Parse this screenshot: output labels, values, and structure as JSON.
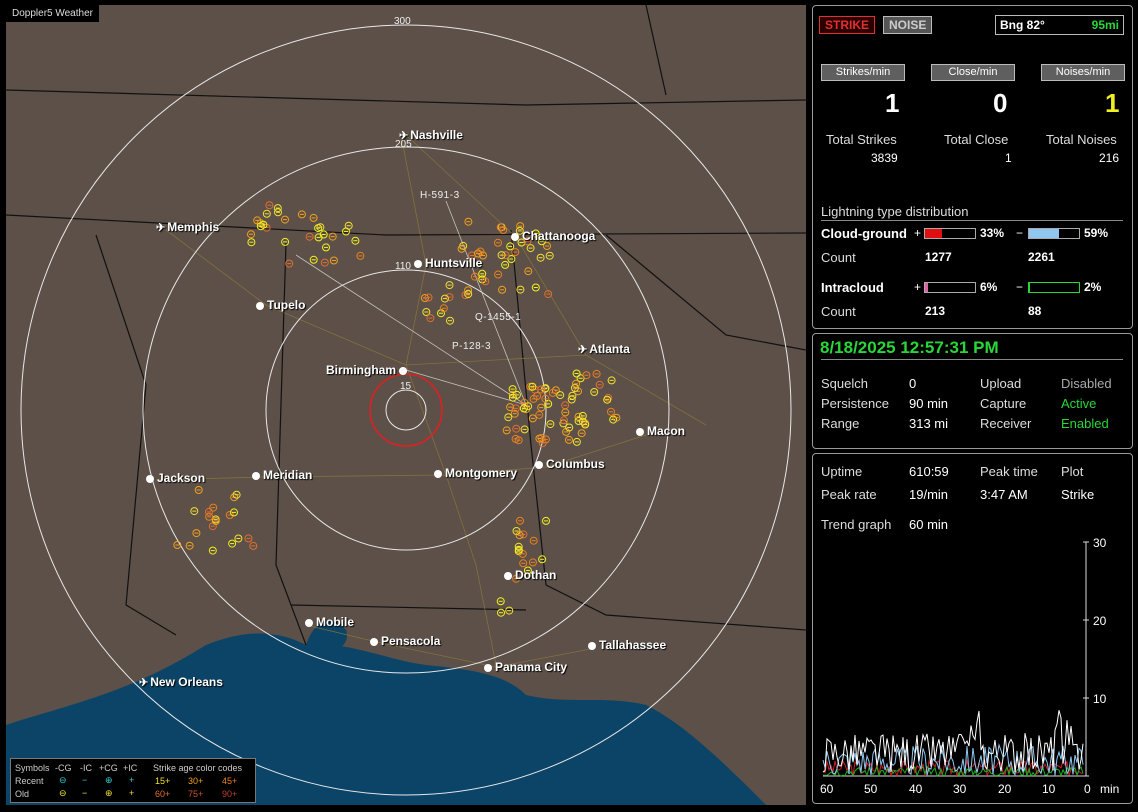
{
  "window": {
    "title": "Doppler5 Weather"
  },
  "map": {
    "range_labels": [
      "300",
      "205",
      "110",
      "15"
    ],
    "cities": [
      {
        "name": "Nashville",
        "icon": "plane"
      },
      {
        "name": "Memphis",
        "icon": "plane"
      },
      {
        "name": "Chattanooga",
        "icon": "dot"
      },
      {
        "name": "Huntsville",
        "icon": "dot"
      },
      {
        "name": "Tupelo",
        "icon": "dot"
      },
      {
        "name": "Atlanta",
        "icon": "plane"
      },
      {
        "name": "Birmingham",
        "icon": "dot"
      },
      {
        "name": "Macon",
        "icon": "dot"
      },
      {
        "name": "Columbus",
        "icon": "dot"
      },
      {
        "name": "Jackson",
        "icon": "dot"
      },
      {
        "name": "Meridian",
        "icon": "dot"
      },
      {
        "name": "Montgomery",
        "icon": "dot"
      },
      {
        "name": "Dothan",
        "icon": "dot"
      },
      {
        "name": "Mobile",
        "icon": "dot"
      },
      {
        "name": "Pensacola",
        "icon": "dot"
      },
      {
        "name": "Tallahassee",
        "icon": "dot"
      },
      {
        "name": "Panama City",
        "icon": "dot"
      },
      {
        "name": "New Orleans",
        "icon": "plane"
      }
    ],
    "tracks": [
      "H-591-3",
      "Q-1455-1",
      "P-128-3"
    ]
  },
  "legend": {
    "symbols_label": "Symbols",
    "cols": [
      "-CG",
      "-IC",
      "+CG",
      "+IC"
    ],
    "recent_label": "Recent",
    "old_label": "Old",
    "age_title": "Strike age color codes",
    "recent_ages": [
      "15+",
      "30+",
      "45+"
    ],
    "old_ages": [
      "60+",
      "75+",
      "90+"
    ]
  },
  "top": {
    "strike_tab": "STRIKE",
    "noise_tab": "NOISE",
    "bearing": "Bng 82°",
    "distance": "95mi",
    "strikes_min_label": "Strikes/min",
    "close_min_label": "Close/min",
    "noises_min_label": "Noises/min",
    "strikes_min": "1",
    "close_min": "0",
    "noises_min": "1",
    "total_strikes_label": "Total Strikes",
    "total_close_label": "Total Close",
    "total_noises_label": "Total Noises",
    "total_strikes": "3839",
    "total_close": "1",
    "total_noises": "216",
    "dist_title": "Lightning type distribution",
    "cg_label": "Cloud-ground",
    "ic_label": "Intracloud",
    "count_label": "Count",
    "plus": "+",
    "minus": "−",
    "cg_pos_pct": "33%",
    "cg_neg_pct": "59%",
    "cg_pos_count": "1277",
    "cg_neg_count": "2261",
    "ic_pos_pct": "6%",
    "ic_neg_pct": "2%",
    "ic_pos_count": "213",
    "ic_neg_count": "88",
    "cg_pos_frac": 0.33,
    "cg_neg_frac": 0.59,
    "ic_pos_frac": 0.06,
    "ic_neg_frac": 0.02
  },
  "status": {
    "datetime": "8/18/2025 12:57:31 PM",
    "squelch_label": "Squelch",
    "squelch": "0",
    "persistence_label": "Persistence",
    "persistence": "90 min",
    "range_label": "Range",
    "range": "313 mi",
    "upload_label": "Upload",
    "upload": "Disabled",
    "capture_label": "Capture",
    "capture": "Active",
    "receiver_label": "Receiver",
    "receiver": "Enabled"
  },
  "stats": {
    "uptime_label": "Uptime",
    "uptime": "610:59",
    "peak_time_label": "Peak time",
    "plot_label": "Plot",
    "peak_rate_label": "Peak rate",
    "peak_rate": "19/min",
    "peak_time": "3:47 AM",
    "plot": "Strike",
    "trend_label": "Trend graph",
    "trend": "60 min",
    "y_ticks": [
      "30",
      "20",
      "10"
    ],
    "x_ticks": [
      "60",
      "50",
      "40",
      "30",
      "20",
      "10",
      "0"
    ],
    "x_unit": "min"
  }
}
